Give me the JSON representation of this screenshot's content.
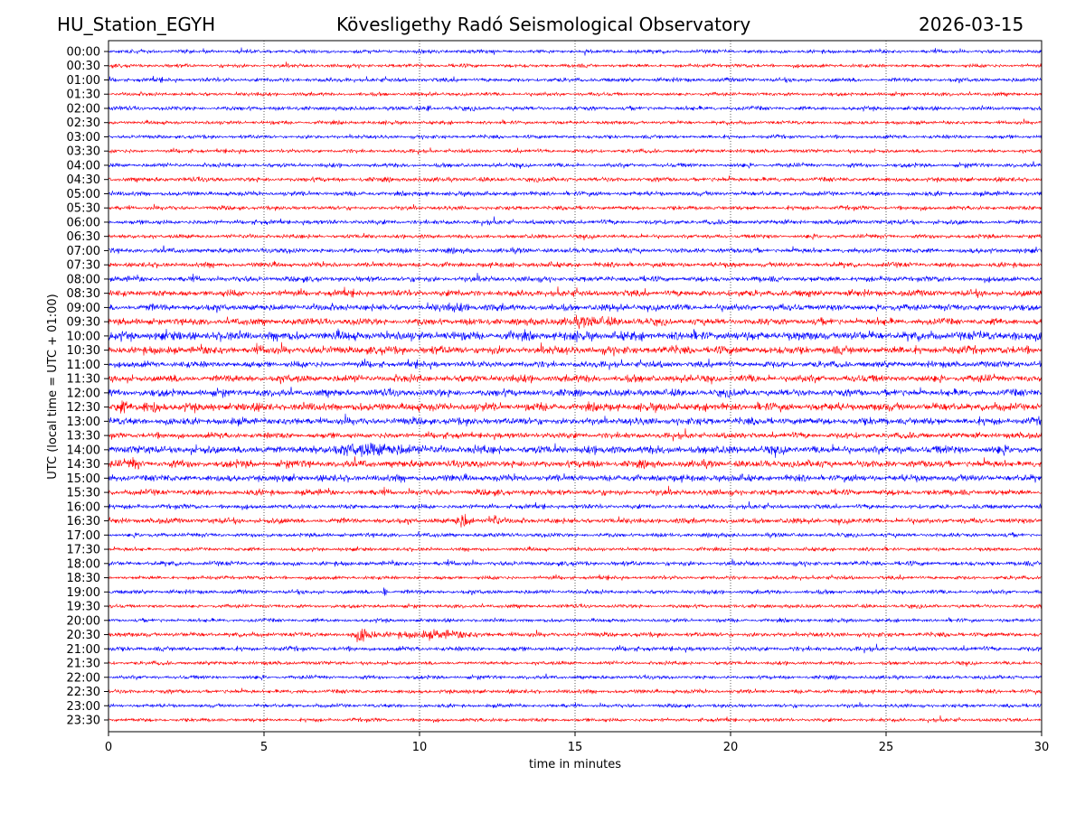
{
  "header": {
    "station": "HU_Station_EGYH",
    "title": "Kövesligethy Radó Seismological Observatory",
    "date": "2026-03-15"
  },
  "chart_data": {
    "type": "line",
    "subtype": "helicorder",
    "title": "Kövesligethy Radó Seismological Observatory",
    "xlabel": "time in minutes",
    "ylabel": "UTC (local time = UTC + 01:00)",
    "xlim": [
      0,
      30
    ],
    "xticks": [
      "0",
      "5",
      "10",
      "15",
      "20",
      "25",
      "30"
    ],
    "grid": "vertical dotted at 5-minute intervals",
    "colors": [
      "#0000ff",
      "#ff0000"
    ],
    "rows": [
      "00:00",
      "00:30",
      "01:00",
      "01:30",
      "02:00",
      "02:30",
      "03:00",
      "03:30",
      "04:00",
      "04:30",
      "05:00",
      "05:30",
      "06:00",
      "06:30",
      "07:00",
      "07:30",
      "08:00",
      "08:30",
      "09:00",
      "09:30",
      "10:00",
      "10:30",
      "11:00",
      "11:30",
      "12:00",
      "12:30",
      "13:00",
      "13:30",
      "14:00",
      "14:30",
      "15:00",
      "15:30",
      "16:00",
      "16:30",
      "17:00",
      "17:30",
      "18:00",
      "18:30",
      "19:00",
      "19:30",
      "20:00",
      "20:30",
      "21:00",
      "21:30",
      "22:00",
      "22:30",
      "23:00",
      "23:30"
    ],
    "noise_level": [
      0.8,
      0.8,
      0.9,
      0.8,
      0.9,
      0.8,
      0.8,
      0.8,
      0.9,
      1.0,
      1.0,
      0.9,
      1.0,
      0.9,
      1.1,
      1.1,
      1.2,
      1.4,
      1.5,
      1.5,
      2.0,
      1.8,
      1.4,
      1.6,
      1.6,
      1.8,
      1.6,
      1.3,
      1.8,
      1.6,
      1.5,
      1.3,
      1.0,
      1.2,
      0.9,
      0.8,
      1.0,
      0.8,
      0.9,
      0.8,
      0.8,
      1.0,
      1.0,
      0.8,
      0.8,
      0.9,
      0.8,
      0.8
    ],
    "events": [
      {
        "row": "02:00",
        "minute": 10.3,
        "amplitude": 3,
        "duration": 0.1
      },
      {
        "row": "08:30",
        "minute": 22.5,
        "amplitude": 3,
        "duration": 0.2
      },
      {
        "row": "09:00",
        "minute": 11.0,
        "amplitude": 2.5,
        "duration": 1.5
      },
      {
        "row": "09:30",
        "minute": 15.5,
        "amplitude": 3,
        "duration": 2.0
      },
      {
        "row": "10:00",
        "minute": 29.5,
        "amplitude": 3,
        "duration": 1.0
      },
      {
        "row": "12:30",
        "minute": 0.4,
        "amplitude": 4,
        "duration": 0.4
      },
      {
        "row": "12:30",
        "minute": 1.4,
        "amplitude": 4,
        "duration": 0.6
      },
      {
        "row": "14:00",
        "minute": 8.5,
        "amplitude": 4,
        "duration": 2.5
      },
      {
        "row": "14:30",
        "minute": 0.8,
        "amplitude": 3.5,
        "duration": 0.4
      },
      {
        "row": "16:30",
        "minute": 11.4,
        "amplitude": 4.5,
        "duration": 0.4
      },
      {
        "row": "16:30",
        "minute": 12.4,
        "amplitude": 4,
        "duration": 0.3
      },
      {
        "row": "19:00",
        "minute": 8.9,
        "amplitude": 5,
        "duration": 0.1
      },
      {
        "row": "20:30",
        "minute": 8.2,
        "amplitude": 4.5,
        "duration": 0.5
      },
      {
        "row": "20:30",
        "minute": 10.5,
        "amplitude": 2.5,
        "duration": 2.5
      }
    ]
  }
}
